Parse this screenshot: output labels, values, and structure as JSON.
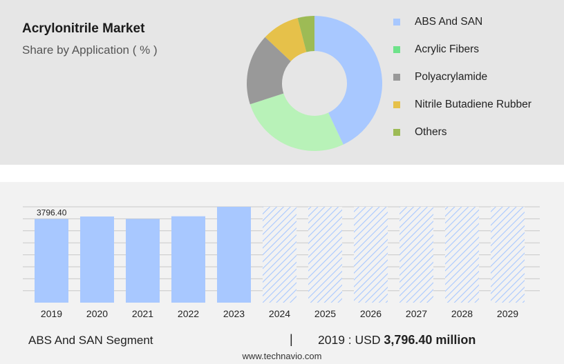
{
  "header": {
    "title": "Acrylonitrile Market",
    "subtitle": "Share by Application ( % )"
  },
  "footer": {
    "segment_label": "ABS And SAN Segment",
    "separator": "|",
    "year_prefix": "2019 : USD",
    "value_text": "3,796.40 million",
    "source": "www.technavio.com"
  },
  "colors": {
    "panel_top": "#e6e6e6",
    "panel_bottom": "#f2f2f2",
    "bar_fill": "#a8c8ff",
    "hatch": "#a8c8ff",
    "grid": "#c8c8c8"
  },
  "chart_data": [
    {
      "type": "pie",
      "variant": "donut",
      "title": "Share by Application ( % )",
      "legend_placement": "right",
      "series": [
        {
          "name": "ABS And SAN",
          "value": 43,
          "color": "#a8c8ff",
          "icon": "square-swatch"
        },
        {
          "name": "Acrylic Fibers",
          "value": 27,
          "color": "#b8f2b8",
          "legend_color": "#6ee28a",
          "icon": "square-swatch"
        },
        {
          "name": "Polyacrylamide",
          "value": 17,
          "color": "#999999",
          "icon": "square-swatch"
        },
        {
          "name": "Nitrile Butadiene Rubber",
          "value": 9,
          "color": "#e6c14a",
          "icon": "square-swatch"
        },
        {
          "name": "Others",
          "value": 4,
          "color": "#9dbb55",
          "icon": "square-swatch"
        }
      ]
    },
    {
      "type": "bar",
      "title": "",
      "xlabel": "",
      "ylabel": "",
      "grid": true,
      "categories": [
        "2019",
        "2020",
        "2021",
        "2022",
        "2023",
        "2024",
        "2025",
        "2026",
        "2027",
        "2028",
        "2029"
      ],
      "values": [
        3796.4,
        3910,
        3800,
        3920,
        4350,
        4350,
        4350,
        4350,
        4350,
        4350,
        4350
      ],
      "forecast": [
        false,
        false,
        false,
        false,
        false,
        true,
        true,
        true,
        true,
        true,
        true
      ],
      "data_labels": [
        "3796.40",
        "",
        "",
        "",
        "",
        "",
        "",
        "",
        "",
        "",
        ""
      ],
      "ylim": [
        0,
        4350
      ]
    }
  ]
}
